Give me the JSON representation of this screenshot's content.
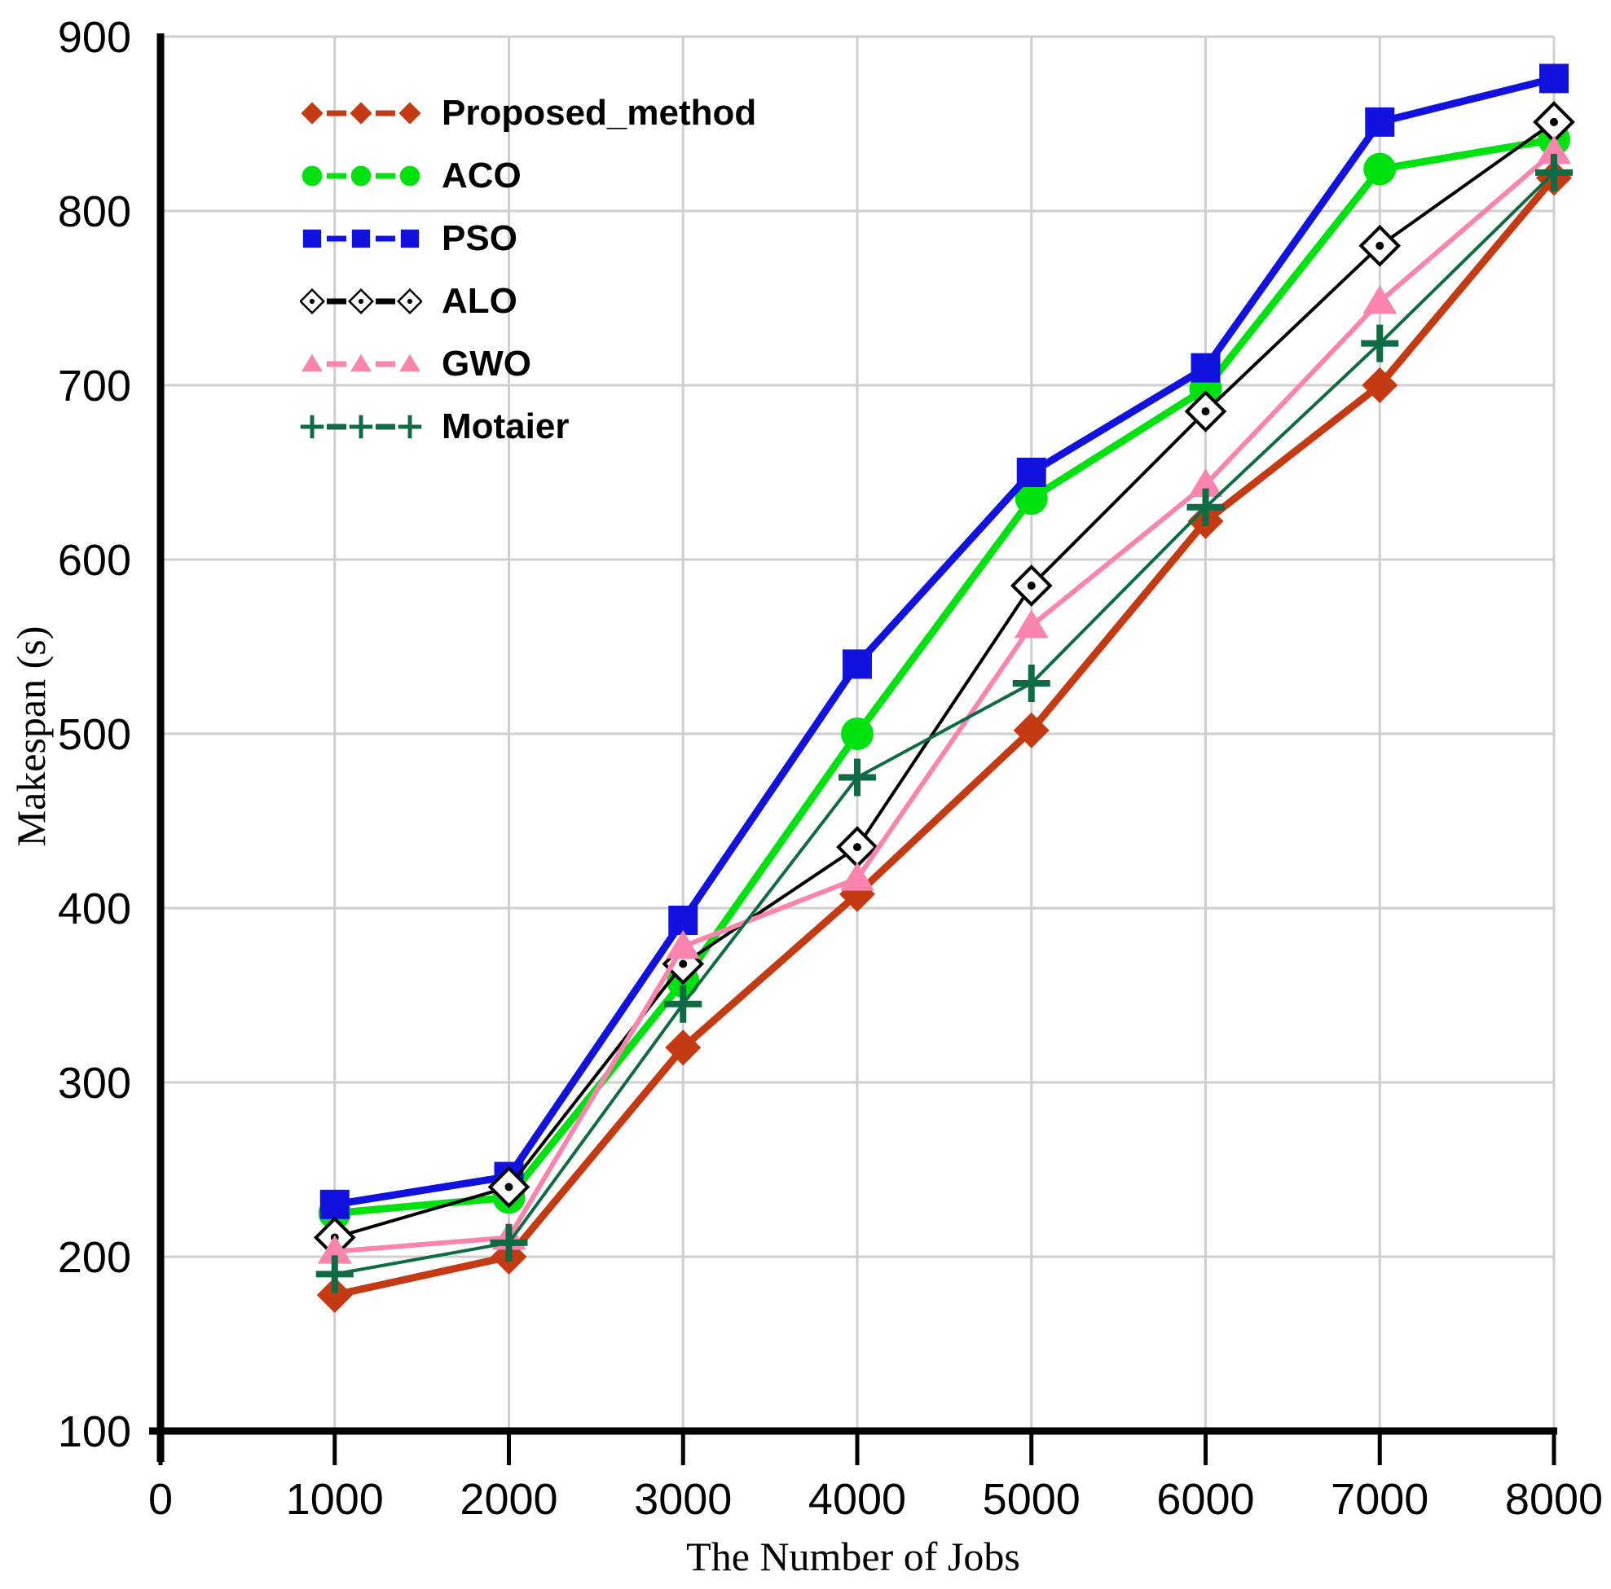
{
  "colors": {
    "background": "#ffffff",
    "gridline": "#cfcfcf",
    "axis": "#000000",
    "tick_label": "#000000"
  },
  "chart_data": {
    "type": "line",
    "title": "",
    "xlabel": "The Number of Jobs",
    "ylabel": "Makespan (s)",
    "x": [
      1000,
      2000,
      3000,
      4000,
      5000,
      6000,
      7000,
      8000
    ],
    "xlim": [
      0,
      8000
    ],
    "ylim": [
      100,
      900
    ],
    "x_tick_labels": [
      "0",
      "1000",
      "2000",
      "3000",
      "4000",
      "5000",
      "6000",
      "7000",
      "8000"
    ],
    "x_tick_values": [
      0,
      1000,
      2000,
      3000,
      4000,
      5000,
      6000,
      7000,
      8000
    ],
    "y_tick_labels": [
      "100",
      "200",
      "300",
      "400",
      "500",
      "600",
      "700",
      "800",
      "900"
    ],
    "y_tick_values": [
      100,
      200,
      300,
      400,
      500,
      600,
      700,
      800,
      900
    ],
    "grid": true,
    "legend_position": "top-left-inside",
    "series": [
      {
        "name": "Proposed_method",
        "color": "#c43a13",
        "marker": "diamond",
        "line_width": 9,
        "values": [
          178,
          200,
          320,
          408,
          502,
          622,
          700,
          819
        ]
      },
      {
        "name": "ACO",
        "color": "#00e210",
        "marker": "circle",
        "line_width": 9,
        "values": [
          225,
          234,
          358,
          500,
          635,
          698,
          824,
          841
        ]
      },
      {
        "name": "PSO",
        "color": "#1111e0",
        "marker": "square",
        "line_width": 9,
        "values": [
          230,
          246,
          393,
          540,
          650,
          710,
          851,
          876
        ]
      },
      {
        "name": "ALO",
        "color": "#000000",
        "marker": "open-diamond-dot",
        "line_width": 4,
        "values": [
          211,
          240,
          368,
          435,
          585,
          685,
          780,
          851
        ]
      },
      {
        "name": "GWO",
        "color": "#fb84ae",
        "marker": "triangle",
        "line_width": 6,
        "values": [
          203,
          211,
          378,
          417,
          562,
          643,
          748,
          834
        ]
      },
      {
        "name": "Motaier",
        "color": "#0e6b43",
        "marker": "plus",
        "line_width": 4,
        "values": [
          190,
          208,
          345,
          475,
          529,
          630,
          724,
          822
        ]
      }
    ]
  }
}
